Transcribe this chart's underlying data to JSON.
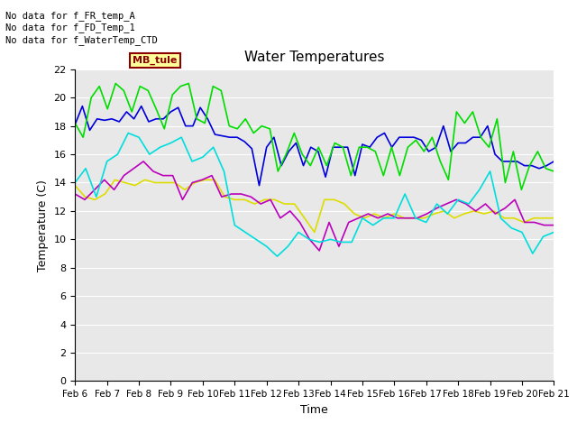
{
  "title": "Water Temperatures",
  "xlabel": "Time",
  "ylabel": "Temperature (C)",
  "ylim": [
    0,
    22
  ],
  "yticks": [
    0,
    2,
    4,
    6,
    8,
    10,
    12,
    14,
    16,
    18,
    20,
    22
  ],
  "annotations": [
    "No data for f_FR_temp_A",
    "No data for f_FD_Temp_1",
    "No data for f_WaterTemp_CTD"
  ],
  "mb_tule_label": "MB_tule",
  "x_labels": [
    "Feb 6",
    "Feb 7",
    "Feb 8",
    "Feb 9",
    "Feb 10",
    "Feb 11",
    "Feb 12",
    "Feb 13",
    "Feb 14",
    "Feb 15",
    "Feb 16",
    "Feb 17",
    "Feb 18",
    "Feb 19",
    "Feb 20",
    "Feb 21"
  ],
  "colors": {
    "FR_temp_B": "#0000dd",
    "FR_temp_C": "#00dd00",
    "WaterT": "#dddd00",
    "CondTemp": "#bb00bb",
    "MDTemp_A": "#00dddd"
  },
  "plot_bg_color": "#e8e8e8",
  "FR_temp_B": [
    18.1,
    19.4,
    17.7,
    18.5,
    18.4,
    18.5,
    18.3,
    19.0,
    18.5,
    19.4,
    18.3,
    18.5,
    18.5,
    19.0,
    19.3,
    18.0,
    18.0,
    19.3,
    18.5,
    17.4,
    17.3,
    17.2,
    17.2,
    16.9,
    16.4,
    13.8,
    16.5,
    17.2,
    15.2,
    16.2,
    16.8,
    15.2,
    16.5,
    16.2,
    14.4,
    16.5,
    16.5,
    16.5,
    14.5,
    16.7,
    16.5,
    17.2,
    17.5,
    16.5,
    17.2,
    17.2,
    17.2,
    17.0,
    16.2,
    16.5,
    18.0,
    16.2,
    16.8,
    16.8,
    17.2,
    17.2,
    18.0,
    16.0,
    15.5,
    15.5,
    15.5,
    15.2,
    15.2,
    15.0,
    15.2,
    15.5
  ],
  "FR_temp_C": [
    18.2,
    17.2,
    20.0,
    20.8,
    19.2,
    21.0,
    20.5,
    19.0,
    20.8,
    20.5,
    19.2,
    17.8,
    20.2,
    20.8,
    21.0,
    18.5,
    18.2,
    20.8,
    20.5,
    18.0,
    17.8,
    18.5,
    17.5,
    18.0,
    17.8,
    14.8,
    16.0,
    17.5,
    16.0,
    15.2,
    16.5,
    15.2,
    16.8,
    16.5,
    14.5,
    16.5,
    16.5,
    16.2,
    14.5,
    16.5,
    14.5,
    16.5,
    17.0,
    16.2,
    17.2,
    15.5,
    14.2,
    19.0,
    18.2,
    19.0,
    17.2,
    16.5,
    18.5,
    14.0,
    16.2,
    13.5,
    15.2,
    16.2,
    15.0,
    14.8
  ],
  "WaterT": [
    13.8,
    13.0,
    12.8,
    13.2,
    14.2,
    14.0,
    13.8,
    14.2,
    14.0,
    14.0,
    14.0,
    13.5,
    14.0,
    14.2,
    14.2,
    13.0,
    12.8,
    12.8,
    12.5,
    12.8,
    12.8,
    12.5,
    12.5,
    11.5,
    10.5,
    12.8,
    12.8,
    12.5,
    11.8,
    11.5,
    11.8,
    11.5,
    11.8,
    11.5,
    11.5,
    11.5,
    11.8,
    12.0,
    11.5,
    11.8,
    12.0,
    11.8,
    12.0,
    11.5,
    11.5,
    11.2,
    11.5,
    11.5,
    11.5
  ],
  "CondTemp": [
    13.2,
    12.8,
    13.5,
    14.2,
    13.5,
    14.5,
    15.0,
    15.5,
    14.8,
    14.5,
    14.5,
    12.8,
    14.0,
    14.2,
    14.5,
    13.0,
    13.2,
    13.2,
    13.0,
    12.5,
    12.8,
    11.5,
    12.0,
    11.2,
    10.0,
    9.2,
    11.2,
    9.5,
    11.2,
    11.5,
    11.8,
    11.5,
    11.8,
    11.5,
    11.5,
    11.5,
    11.8,
    12.2,
    12.5,
    12.8,
    12.5,
    12.0,
    12.5,
    11.8,
    12.2,
    12.8,
    11.2,
    11.2,
    11.0,
    11.0
  ],
  "MDTemp_A": [
    14.0,
    15.0,
    13.0,
    15.5,
    16.0,
    17.5,
    17.2,
    16.0,
    16.5,
    16.8,
    17.2,
    15.5,
    15.8,
    16.5,
    14.8,
    11.0,
    10.5,
    10.0,
    9.5,
    8.8,
    9.5,
    10.5,
    10.0,
    9.8,
    10.0,
    9.8,
    9.8,
    11.5,
    11.0,
    11.5,
    11.5,
    13.2,
    11.5,
    11.2,
    12.5,
    11.8,
    12.8,
    12.5,
    13.5,
    14.8,
    11.5,
    10.8,
    10.5,
    9.0,
    10.2,
    10.5
  ]
}
